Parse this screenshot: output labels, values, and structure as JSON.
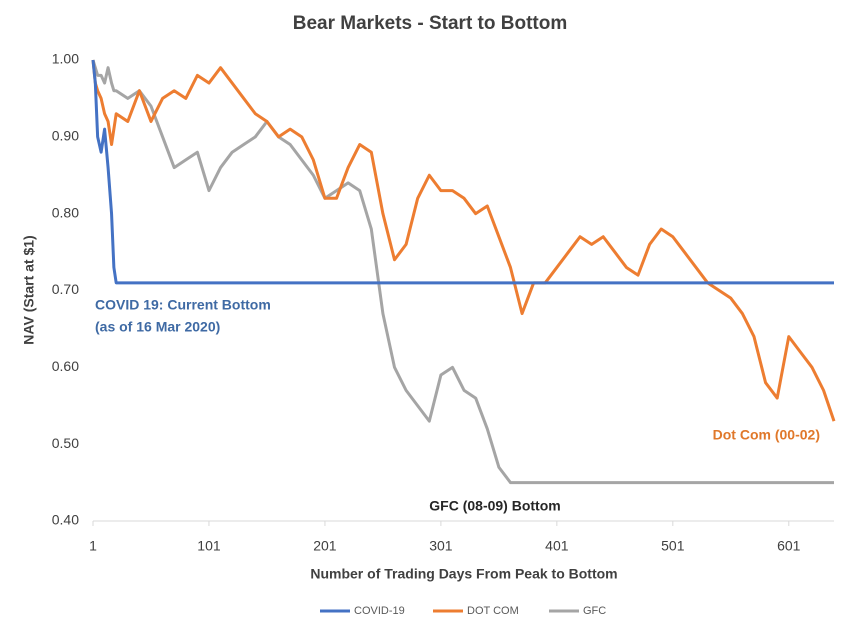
{
  "chart_data": {
    "type": "line",
    "title": "Bear Markets - Start to Bottom",
    "x_label": "Number of Trading Days From Peak to Bottom",
    "y_label": "NAV (Start at $1)",
    "x": [
      1,
      3,
      5,
      8,
      11,
      14,
      17,
      19,
      21,
      31,
      41,
      51,
      61,
      71,
      81,
      91,
      101,
      111,
      121,
      131,
      141,
      151,
      161,
      171,
      181,
      191,
      201,
      211,
      221,
      231,
      241,
      251,
      261,
      271,
      281,
      291,
      301,
      311,
      321,
      331,
      341,
      351,
      361,
      371,
      381,
      391,
      401,
      411,
      421,
      431,
      441,
      451,
      461,
      471,
      481,
      491,
      501,
      511,
      521,
      531,
      541,
      551,
      561,
      571,
      581,
      591,
      601,
      611,
      621,
      631,
      640
    ],
    "series": [
      {
        "name": "COVID-19",
        "color": "#4472c4",
        "values": [
          1.0,
          0.97,
          0.9,
          0.88,
          0.91,
          0.86,
          0.8,
          0.73,
          0.71,
          0.71,
          0.71,
          0.71,
          0.71,
          0.71,
          0.71,
          0.71,
          0.71,
          0.71,
          0.71,
          0.71,
          0.71,
          0.71,
          0.71,
          0.71,
          0.71,
          0.71,
          0.71,
          0.71,
          0.71,
          0.71,
          0.71,
          0.71,
          0.71,
          0.71,
          0.71,
          0.71,
          0.71,
          0.71,
          0.71,
          0.71,
          0.71,
          0.71,
          0.71,
          0.71,
          0.71,
          0.71,
          0.71,
          0.71,
          0.71,
          0.71,
          0.71,
          0.71,
          0.71,
          0.71,
          0.71,
          0.71,
          0.71,
          0.71,
          0.71,
          0.71,
          0.71,
          0.71,
          0.71,
          0.71,
          0.71,
          0.71,
          0.71,
          0.71,
          0.71,
          0.71,
          0.71
        ]
      },
      {
        "name": "DOT COM",
        "color": "#ed7d31",
        "values": [
          1.0,
          0.97,
          0.96,
          0.95,
          0.93,
          0.92,
          0.89,
          0.91,
          0.93,
          0.92,
          0.96,
          0.92,
          0.95,
          0.96,
          0.95,
          0.98,
          0.97,
          0.99,
          0.97,
          0.95,
          0.93,
          0.92,
          0.9,
          0.91,
          0.9,
          0.87,
          0.82,
          0.82,
          0.86,
          0.89,
          0.88,
          0.8,
          0.74,
          0.76,
          0.82,
          0.85,
          0.83,
          0.83,
          0.82,
          0.8,
          0.81,
          0.77,
          0.73,
          0.67,
          0.71,
          0.71,
          0.73,
          0.75,
          0.77,
          0.76,
          0.77,
          0.75,
          0.73,
          0.72,
          0.76,
          0.78,
          0.77,
          0.75,
          0.73,
          0.71,
          0.7,
          0.69,
          0.67,
          0.64,
          0.58,
          0.56,
          0.64,
          0.62,
          0.6,
          0.57,
          0.53
        ]
      },
      {
        "name": "GFC",
        "color": "#a5a5a5",
        "values": [
          1.0,
          0.99,
          0.98,
          0.98,
          0.97,
          0.99,
          0.97,
          0.96,
          0.96,
          0.95,
          0.96,
          0.94,
          0.9,
          0.86,
          0.87,
          0.88,
          0.83,
          0.86,
          0.88,
          0.89,
          0.9,
          0.92,
          0.9,
          0.89,
          0.87,
          0.85,
          0.82,
          0.83,
          0.84,
          0.83,
          0.78,
          0.67,
          0.6,
          0.57,
          0.55,
          0.53,
          0.59,
          0.6,
          0.57,
          0.56,
          0.52,
          0.47,
          0.45,
          0.45,
          0.45,
          0.45,
          0.45,
          0.45,
          0.45,
          0.45,
          0.45,
          0.45,
          0.45,
          0.45,
          0.45,
          0.45,
          0.45,
          0.45,
          0.45,
          0.45,
          0.45,
          0.45,
          0.45,
          0.45,
          0.45,
          0.45,
          0.45,
          0.45,
          0.45,
          0.45,
          0.45
        ]
      }
    ],
    "xlim": [
      1,
      640
    ],
    "xticks": [
      1,
      101,
      201,
      301,
      401,
      501,
      601
    ],
    "ylim": [
      0.4,
      1.0
    ],
    "yticks": [
      {
        "value": 0.4,
        "label": "0.40"
      },
      {
        "value": 0.5,
        "label": "0.50"
      },
      {
        "value": 0.6,
        "label": "0.60"
      },
      {
        "value": 0.7,
        "label": "0.70"
      },
      {
        "value": 0.8,
        "label": "0.80"
      },
      {
        "value": 0.9,
        "label": "0.90"
      },
      {
        "value": 1.0,
        "label": "1.00"
      }
    ],
    "grid": false,
    "legend": "bottom",
    "annotations": [
      {
        "text": "COVID 19: Current Bottom",
        "color": "#3f6aa4"
      },
      {
        "text": "(as of 16 Mar 2020)",
        "color": "#3f6aa4"
      },
      {
        "text": "Dot Com (00-02)",
        "color": "#e0782a"
      },
      {
        "text": "GFC (08-09) Bottom",
        "color": "#262626"
      }
    ]
  }
}
